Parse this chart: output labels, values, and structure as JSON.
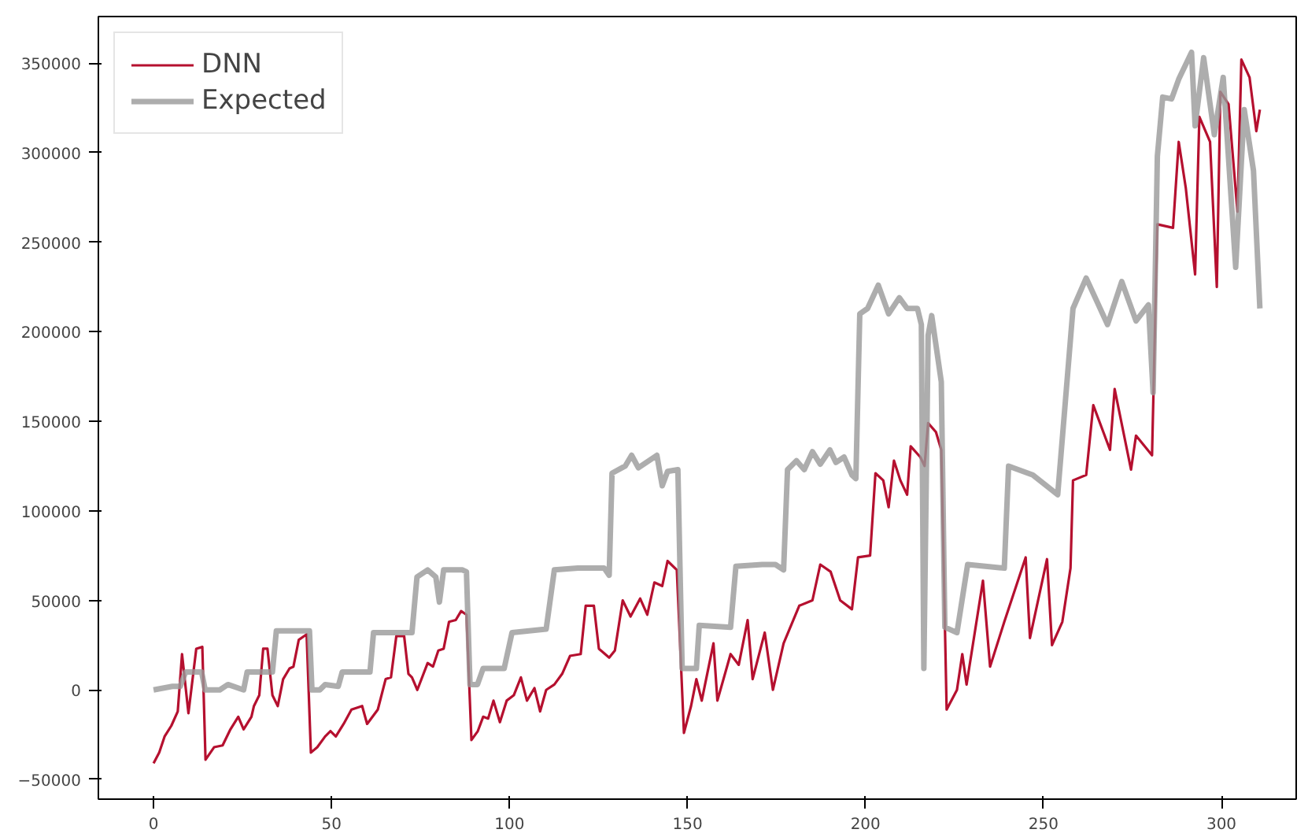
{
  "chart_data": {
    "type": "line",
    "xlim": [
      -15.5,
      321
    ],
    "ylim": [
      -61000,
      376000
    ],
    "xticks": [
      0,
      50,
      100,
      150,
      200,
      250,
      300
    ],
    "yticks": [
      -50000,
      0,
      50000,
      100000,
      150000,
      200000,
      250000,
      300000,
      350000
    ],
    "grid": false,
    "legend": "top left",
    "marker": "none",
    "line_style": "solid",
    "series": [
      {
        "name": "DNN",
        "color": "#b5102f",
        "x": [
          0,
          1.6,
          3.1,
          5,
          6.8,
          8,
          9.8,
          12,
          13.7,
          14.6,
          17,
          19.4,
          21.6,
          23.8,
          25.3,
          27.5,
          28.2,
          29.7,
          30.8,
          32,
          33.4,
          34.9,
          36.4,
          38.2,
          39.3,
          40.8,
          43,
          44.2,
          46,
          48.2,
          49.7,
          51.2,
          53.4,
          55.6,
          58.6,
          60,
          63,
          65.2,
          66.7,
          68.2,
          70.4,
          71.6,
          72.6,
          74.1,
          77,
          78.5,
          80,
          81.5,
          83,
          84.9,
          86.4,
          87.9,
          89.3,
          91.1,
          92.6,
          94,
          95.5,
          97.3,
          99.2,
          101.2,
          103.2,
          104.9,
          107,
          108.6,
          110.3,
          112.6,
          114.8,
          117,
          120,
          121.4,
          123.7,
          125.1,
          128,
          129.6,
          131.8,
          134,
          136.7,
          138.7,
          140.7,
          142.9,
          144.4,
          147,
          148,
          149,
          151,
          152.5,
          154,
          157.3,
          158.4,
          162.1,
          164.4,
          166.9,
          168.3,
          171.7,
          174,
          177,
          181.4,
          185.1,
          187.3,
          190.2,
          192.9,
          196.2,
          197.9,
          201.3,
          202.8,
          205,
          206.5,
          208,
          209.8,
          211.7,
          212.7,
          215.4,
          216.6,
          217.6,
          219.8,
          221.3,
          222.8,
          225.7,
          227.2,
          228.4,
          233,
          235,
          239,
          245,
          246.2,
          251,
          252.4,
          255.3,
          257.6,
          258.3,
          262,
          264,
          268.7,
          270,
          274.6,
          276,
          280.5,
          282,
          286.4,
          288,
          290,
          292.6,
          293.8,
          296.8,
          298.7,
          299.7,
          302,
          304.5,
          305.6,
          307.9,
          309.8,
          310.8
        ],
        "values": [
          -41000,
          -35000,
          -26000,
          -20000,
          -12000,
          20000,
          -13000,
          23000,
          24000,
          -39000,
          -32000,
          -31000,
          -22000,
          -15000,
          -22000,
          -15000,
          -9000,
          -3000,
          23000,
          23000,
          -3000,
          -9000,
          6000,
          12000,
          13000,
          28000,
          31000,
          -35000,
          -32000,
          -26000,
          -23000,
          -26000,
          -19000,
          -11000,
          -9000,
          -19000,
          -11000,
          6000,
          7000,
          30000,
          30000,
          9000,
          7000,
          0,
          15000,
          13000,
          22000,
          23000,
          38000,
          39000,
          44000,
          42000,
          -28000,
          -23000,
          -15000,
          -16000,
          -6000,
          -18000,
          -6000,
          -3000,
          7000,
          -6000,
          1000,
          -12000,
          0,
          3000,
          9000,
          19000,
          20000,
          47000,
          47000,
          23000,
          18000,
          22000,
          50000,
          41000,
          51000,
          42000,
          60000,
          58000,
          72000,
          67000,
          22000,
          -24000,
          -9000,
          6000,
          -6000,
          26000,
          -6000,
          20000,
          14000,
          39000,
          6000,
          32000,
          0,
          26000,
          47000,
          50000,
          70000,
          66000,
          50000,
          45000,
          74000,
          75000,
          121000,
          117000,
          102000,
          128000,
          117000,
          109000,
          136000,
          130000,
          125000,
          149000,
          144000,
          134000,
          -11000,
          0,
          20000,
          3000,
          61000,
          13000,
          38000,
          74000,
          29000,
          73000,
          25000,
          38000,
          68000,
          117000,
          120000,
          159000,
          134000,
          168000,
          123000,
          142000,
          131000,
          260000,
          258000,
          306000,
          280000,
          232000,
          320000,
          306000,
          225000,
          334000,
          327000,
          267000,
          352000,
          342000,
          312000,
          324000
        ]
      },
      {
        "name": "Expected",
        "color": "#999999",
        "x": [
          0,
          5.3,
          7.5,
          9,
          13.5,
          14.5,
          18.6,
          20.9,
          25.3,
          26.3,
          33.4,
          34.5,
          43.8,
          44.5,
          46.7,
          48.2,
          51.9,
          53,
          60.8,
          61.8,
          72.6,
          74,
          77,
          79.3,
          80.3,
          81.5,
          86.7,
          87.9,
          88.9,
          91,
          92.6,
          98.5,
          100.7,
          110.3,
          112.6,
          119.2,
          126.6,
          128,
          128.8,
          132.5,
          134.3,
          136.2,
          141.4,
          142.9,
          144.4,
          147.3,
          148.5,
          152.5,
          153.3,
          162.1,
          163.6,
          171,
          174.7,
          177,
          178.1,
          180.6,
          182.8,
          185.1,
          187.3,
          190,
          191.7,
          194,
          196.2,
          197.3,
          198.4,
          200.6,
          203.6,
          206.5,
          209.5,
          211.7,
          214.6,
          215.7,
          216.4,
          217.6,
          218.6,
          221.3,
          222.3,
          225.7,
          228.7,
          239,
          240.2,
          247,
          254,
          258.3,
          262,
          268,
          272,
          276,
          279.5,
          280.8,
          282,
          283.5,
          286,
          288,
          291.6,
          292.6,
          295,
          298,
          300.5,
          304,
          306.4,
          309,
          310.8
        ],
        "values": [
          0,
          2000,
          2000,
          10000,
          10000,
          0,
          0,
          3000,
          0,
          10000,
          10000,
          33000,
          33000,
          0,
          0,
          3000,
          2000,
          10000,
          10000,
          32000,
          32000,
          63000,
          67000,
          63000,
          49000,
          67000,
          67000,
          66000,
          3000,
          3000,
          12000,
          12000,
          32000,
          34000,
          67000,
          68000,
          68000,
          64000,
          121000,
          125000,
          131000,
          124000,
          131000,
          114000,
          122000,
          123000,
          12000,
          12000,
          36000,
          35000,
          69000,
          70000,
          70000,
          67000,
          123000,
          128000,
          123000,
          133000,
          126000,
          134000,
          127000,
          130000,
          120000,
          118000,
          210000,
          213000,
          226000,
          210000,
          219000,
          213000,
          213000,
          204000,
          12000,
          198000,
          209000,
          172000,
          35000,
          32000,
          70000,
          68000,
          125000,
          120000,
          109000,
          213000,
          230000,
          204000,
          228000,
          206000,
          215000,
          166000,
          298000,
          331000,
          330000,
          341000,
          356000,
          315000,
          353000,
          310000,
          342000,
          236000,
          324000,
          290000,
          213000
        ]
      }
    ]
  }
}
